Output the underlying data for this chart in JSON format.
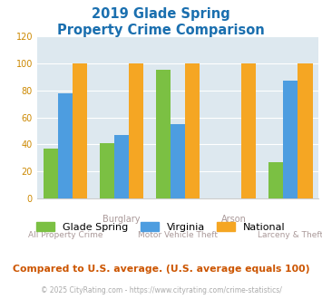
{
  "title_line1": "2019 Glade Spring",
  "title_line2": "Property Crime Comparison",
  "categories_main": [
    "All Property Crime",
    "Motor Vehicle Theft",
    "Larceny & Theft"
  ],
  "categories_top": [
    "Burglary",
    "Arson"
  ],
  "glade_spring": [
    37,
    41,
    95,
    0,
    27
  ],
  "virginia": [
    78,
    47,
    55,
    0,
    87
  ],
  "national": [
    100,
    100,
    100,
    100,
    100
  ],
  "color_glade": "#7bc043",
  "color_virginia": "#4d9de0",
  "color_national": "#f5a623",
  "ylim": [
    0,
    120
  ],
  "yticks": [
    0,
    20,
    40,
    60,
    80,
    100,
    120
  ],
  "subtitle": "Compared to U.S. average. (U.S. average equals 100)",
  "footer": "© 2025 CityRating.com - https://www.cityrating.com/crime-statistics/",
  "title_color": "#1a6faf",
  "subtitle_color": "#cc5500",
  "footer_color": "#aaaaaa",
  "tick_color": "#cc8800",
  "bg_color": "#dde8ef",
  "legend_glade": "Glade Spring",
  "legend_virginia": "Virginia",
  "legend_national": "National",
  "label_color": "#aa9999"
}
